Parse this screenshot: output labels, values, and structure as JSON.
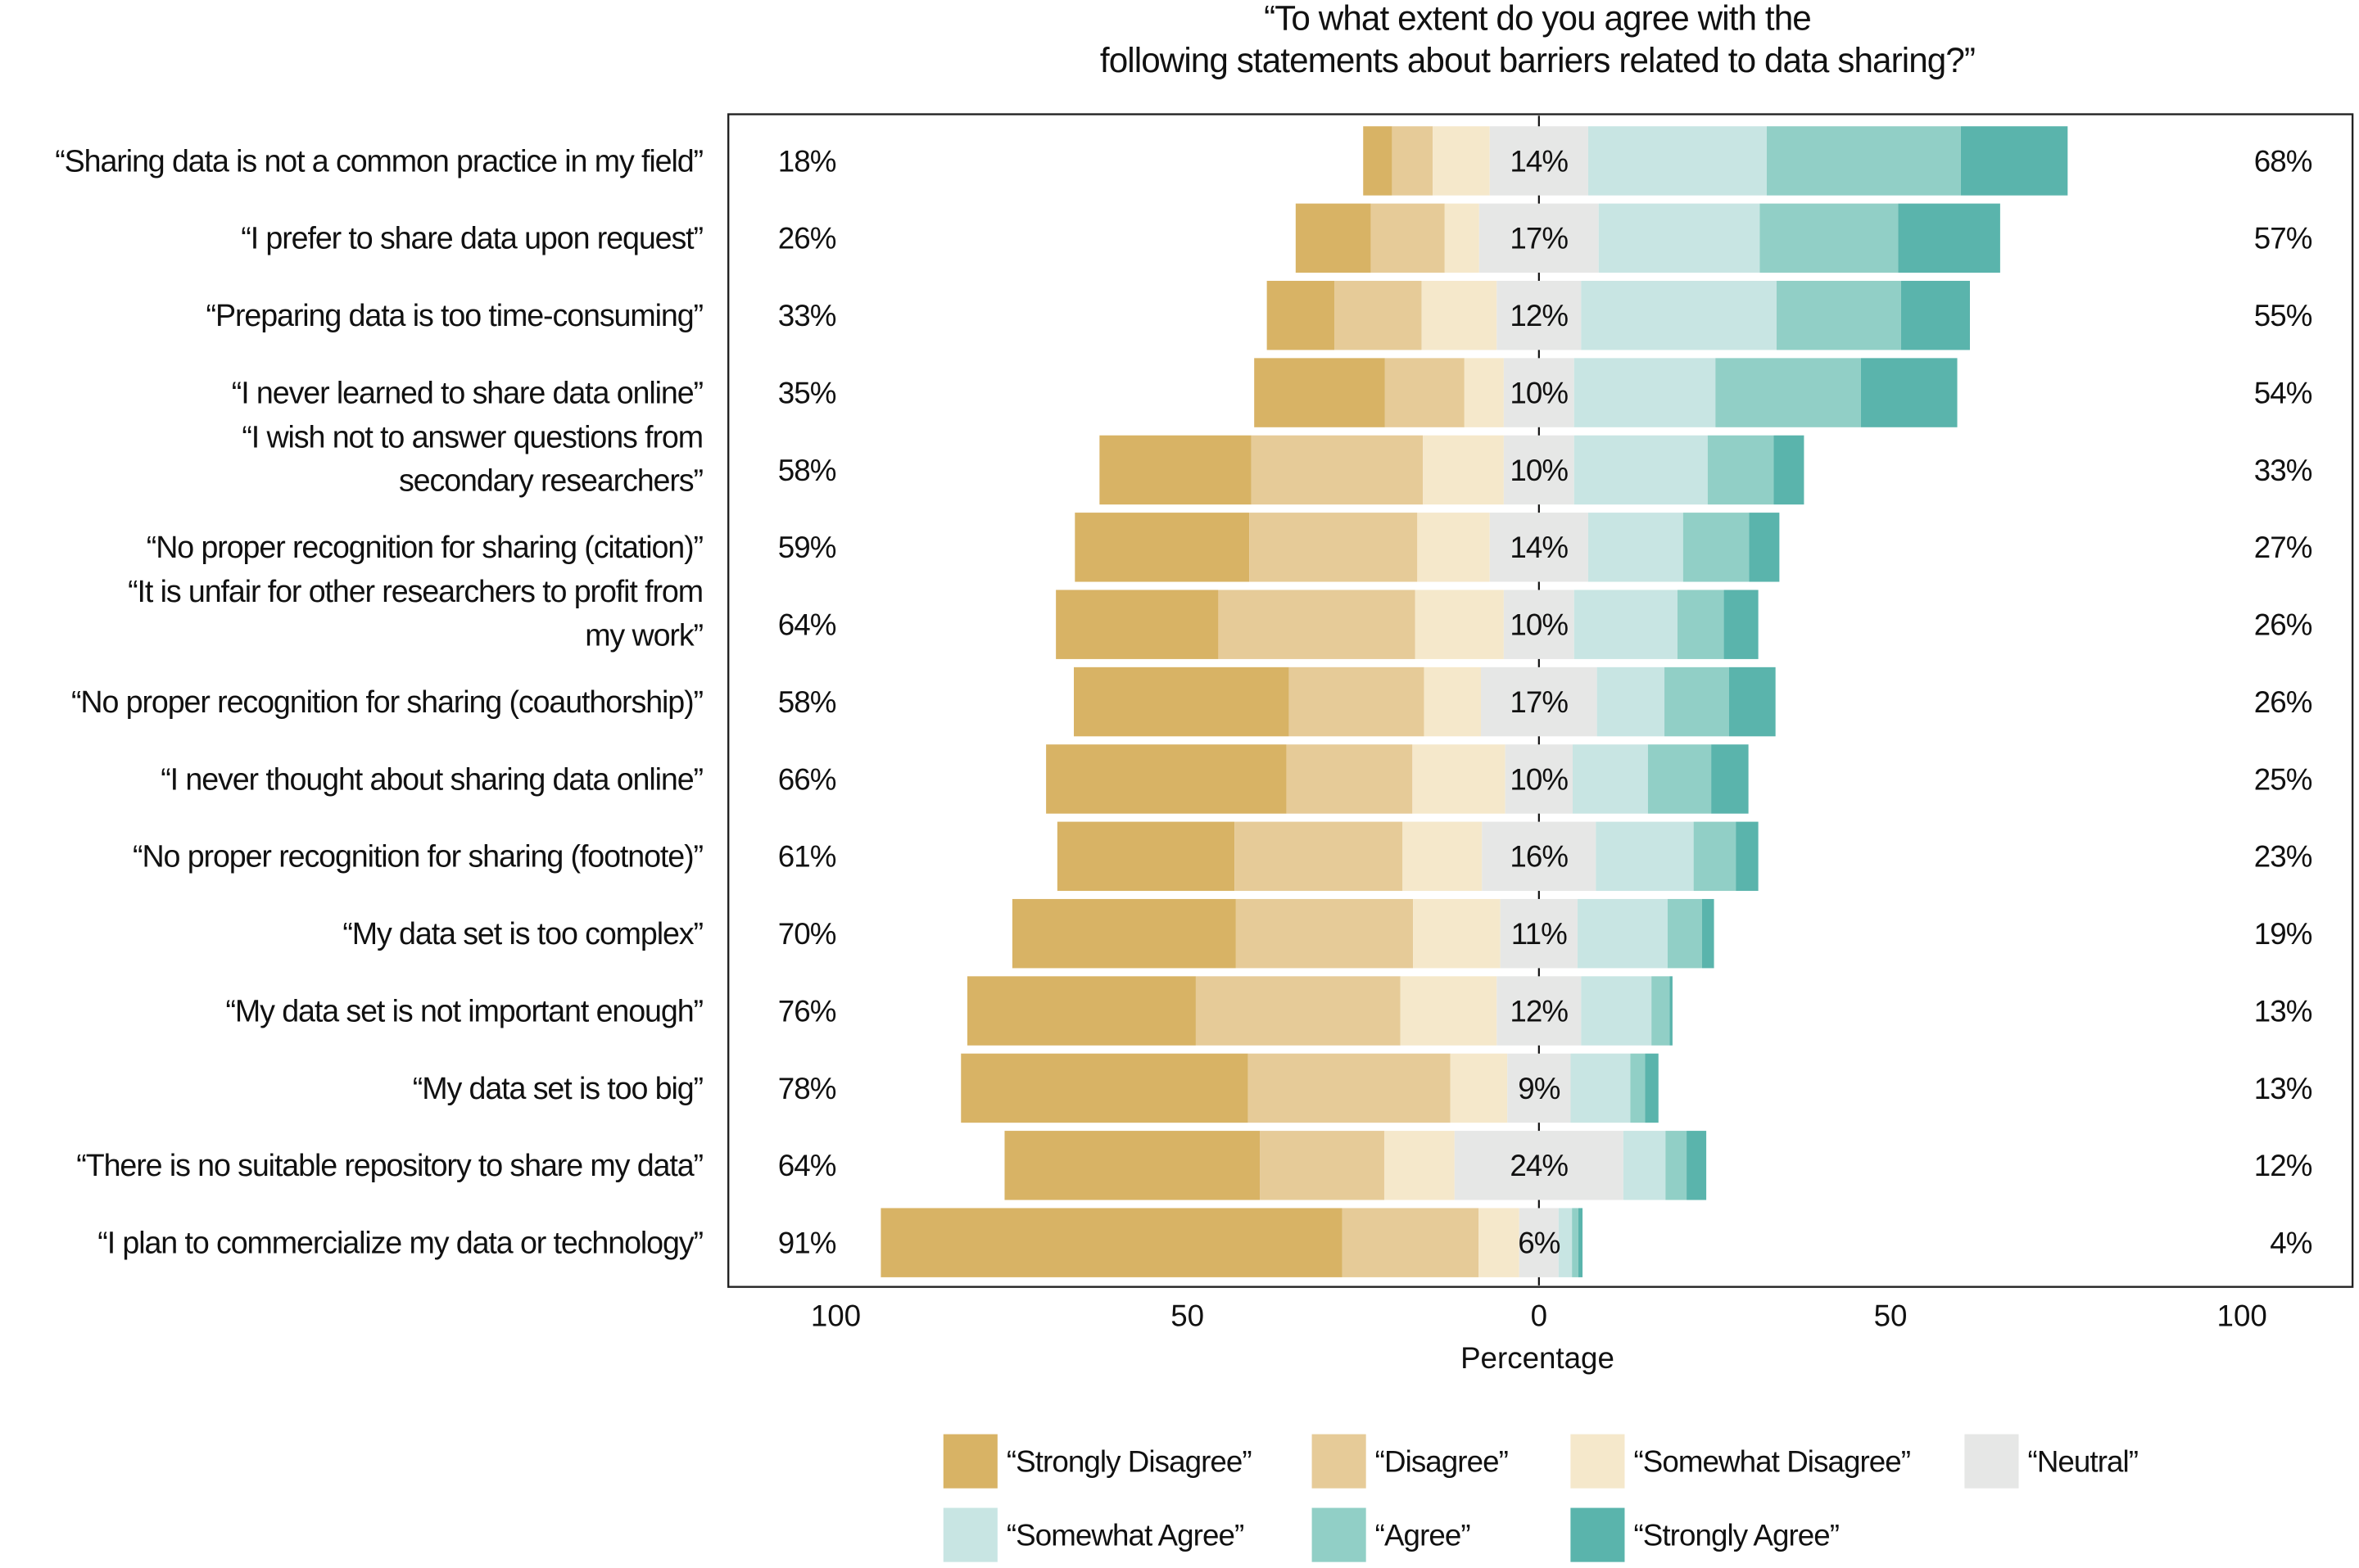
{
  "chart_data": {
    "type": "bar",
    "orientation": "horizontal-diverging-stacked",
    "title": "“To what extent do you agree with the\nfollowing statements about barriers related to data sharing?”",
    "xlabel": "Percentage",
    "xlim": [
      -100,
      100
    ],
    "xticks": [
      {
        "value": -100,
        "label": "100"
      },
      {
        "value": -50,
        "label": "50"
      },
      {
        "value": 0,
        "label": "0"
      },
      {
        "value": 50,
        "label": "50"
      },
      {
        "value": 100,
        "label": "100"
      }
    ],
    "legend_position": "bottom",
    "series": [
      {
        "name": "“Strongly Disagree”",
        "color": "#d8b365"
      },
      {
        "name": "“Disagree”",
        "color": "#e6cb98"
      },
      {
        "name": "“Somewhat Disagree”",
        "color": "#f5e8cb"
      },
      {
        "name": "“Neutral”",
        "color": "#e6e7e6"
      },
      {
        "name": "“Somewhat Agree”",
        "color": "#c8e5e3"
      },
      {
        "name": "“Agree”",
        "color": "#91cfc6"
      },
      {
        "name": "“Strongly Agree”",
        "color": "#5ab4ac"
      }
    ],
    "rows": [
      {
        "label": "“Sharing data is not a common practice in my field”",
        "values": [
          4.1,
          5.8,
          8.1,
          14,
          25.4,
          27.6,
          15.2
        ],
        "disagree_label": "18%",
        "neutral_label": "14%",
        "agree_label": "68%"
      },
      {
        "label": "“I prefer to share data upon request”",
        "values": [
          10.7,
          10.5,
          4.9,
          17,
          22.9,
          19.7,
          14.5
        ],
        "disagree_label": "26%",
        "neutral_label": "17%",
        "agree_label": "57%"
      },
      {
        "label": "“Preparing data is too time-consuming”",
        "values": [
          9.6,
          12.4,
          10.7,
          12,
          27.8,
          17.7,
          9.8
        ],
        "disagree_label": "33%",
        "neutral_label": "12%",
        "agree_label": "55%"
      },
      {
        "label": "“I never learned to share data online”",
        "values": [
          18.6,
          11.3,
          5.6,
          10,
          20.1,
          20.7,
          13.7
        ],
        "disagree_label": "35%",
        "neutral_label": "10%",
        "agree_label": "54%"
      },
      {
        "label": "“I wish not to answer questions from\nsecondary researchers”",
        "values": [
          21.6,
          24.4,
          11.5,
          10,
          19,
          9.4,
          4.3
        ],
        "disagree_label": "58%",
        "neutral_label": "10%",
        "agree_label": "33%"
      },
      {
        "label": "“No proper recognition for sharing (citation)”",
        "values": [
          24.8,
          23.9,
          10.3,
          14,
          13.5,
          9.4,
          4.3
        ],
        "disagree_label": "59%",
        "neutral_label": "14%",
        "agree_label": "27%"
      },
      {
        "label": "“It is unfair for other researchers to profit from\nmy work”",
        "values": [
          23.1,
          28,
          12.6,
          10,
          14.7,
          6.6,
          4.9
        ],
        "disagree_label": "64%",
        "neutral_label": "10%",
        "agree_label": "26%"
      },
      {
        "label": "“No proper recognition for sharing (coauthorship)”",
        "values": [
          30.6,
          19.2,
          8.1,
          16.5,
          9.6,
          9.2,
          6.6
        ],
        "disagree_label": "58%",
        "neutral_label": "17%",
        "agree_label": "26%"
      },
      {
        "label": "“I never thought about sharing data online”",
        "values": [
          34.2,
          17.9,
          13.2,
          9.6,
          10.7,
          9,
          5.3
        ],
        "disagree_label": "66%",
        "neutral_label": "10%",
        "agree_label": "25%"
      },
      {
        "label": "“No proper recognition for sharing (footnote)”",
        "values": [
          25.2,
          23.9,
          11.3,
          16.2,
          13.9,
          6,
          3.2
        ],
        "disagree_label": "61%",
        "neutral_label": "16%",
        "agree_label": "23%"
      },
      {
        "label": "“My data set is too complex”",
        "values": [
          31.8,
          25.2,
          12.4,
          11,
          12.8,
          4.9,
          1.7
        ],
        "disagree_label": "70%",
        "neutral_label": "11%",
        "agree_label": "19%"
      },
      {
        "label": "“My data set is not important enough”",
        "values": [
          32.5,
          29.1,
          13.7,
          12,
          10,
          2.6,
          0.4
        ],
        "disagree_label": "76%",
        "neutral_label": "12%",
        "agree_label": "13%"
      },
      {
        "label": "“My data set is too big”",
        "values": [
          40.8,
          28.8,
          8.1,
          9,
          8.5,
          2.1,
          1.9
        ],
        "disagree_label": "78%",
        "neutral_label": "9%",
        "agree_label": "13%"
      },
      {
        "label": "“There is no suitable repository to share my data”",
        "values": [
          36.3,
          17.7,
          10,
          24,
          6,
          3,
          2.8
        ],
        "disagree_label": "64%",
        "neutral_label": "24%",
        "agree_label": "12%"
      },
      {
        "label": "“I plan to commercialize my data or technology”",
        "values": [
          65.6,
          19.4,
          5.8,
          5.6,
          1.9,
          0.9,
          0.6
        ],
        "disagree_label": "91%",
        "neutral_label": "6%",
        "agree_label": "4%"
      }
    ]
  }
}
